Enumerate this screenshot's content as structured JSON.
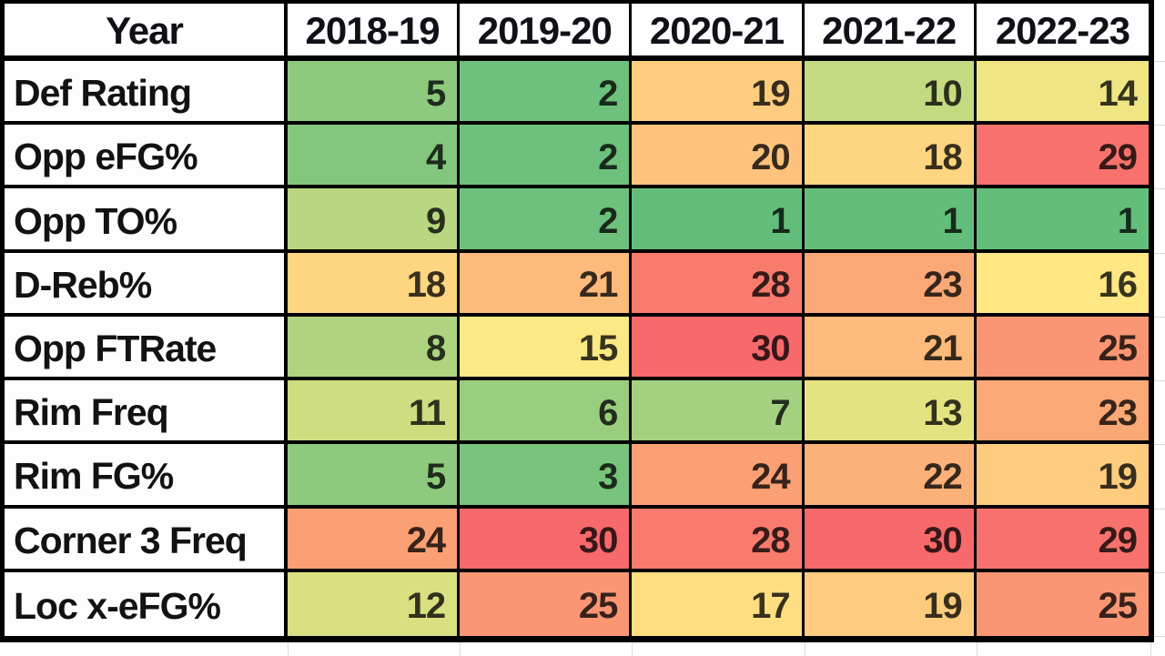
{
  "sheet": {
    "background": "#ffffff",
    "gridline_color": "#d9d9d9",
    "table_border_color": "#000000",
    "header_text_color": "#101016"
  },
  "chart_data": {
    "type": "heatmap",
    "corner_label": "Year",
    "columns": [
      "2018-19",
      "2019-20",
      "2020-21",
      "2021-22",
      "2022-23"
    ],
    "rows": [
      "Def Rating",
      "Opp eFG%",
      "Opp TO%",
      "D-Reb%",
      "Opp FTRate",
      "Rim Freq",
      "Rim FG%",
      "Corner 3 Freq",
      "Loc x-eFG%"
    ],
    "values": [
      [
        5,
        2,
        19,
        10,
        14
      ],
      [
        4,
        2,
        20,
        18,
        29
      ],
      [
        9,
        2,
        1,
        1,
        1
      ],
      [
        18,
        21,
        28,
        23,
        16
      ],
      [
        8,
        15,
        30,
        21,
        25
      ],
      [
        11,
        6,
        7,
        13,
        23
      ],
      [
        5,
        3,
        24,
        22,
        19
      ],
      [
        24,
        30,
        28,
        30,
        29
      ],
      [
        12,
        25,
        17,
        19,
        25
      ]
    ],
    "color_scale": {
      "min_value": 1,
      "mid_value": 15.5,
      "max_value": 30,
      "min_color": "#63BE7B",
      "mid_color": "#FFEB84",
      "max_color": "#F8696B"
    },
    "grid": true,
    "legend": "none"
  }
}
